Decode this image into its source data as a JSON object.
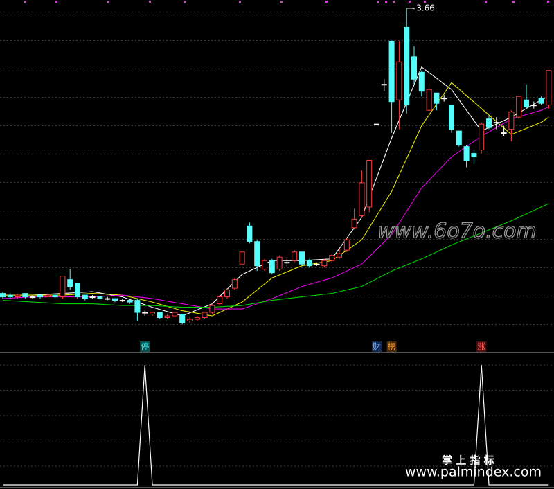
{
  "chart_data": [
    {
      "type": "candlestick",
      "ylim": [
        1.8,
        3.7
      ],
      "up_color": "#ff3c3c",
      "down_color": "#54fcfc",
      "flat_color": "#ffffff",
      "open": [
        2.01,
        2.0,
        1.99,
        2.01,
        1.99,
        2.0,
        1.99,
        2.0,
        1.99,
        2.09,
        2.07,
        2.0,
        1.99,
        1.99,
        1.98,
        1.98,
        1.97,
        1.97,
        1.97,
        1.9,
        1.89,
        1.9,
        1.87,
        1.88,
        1.89,
        1.85,
        1.86,
        1.87,
        1.9,
        1.95,
        1.99,
        2.04,
        2.18,
        2.4,
        2.31,
        2.15,
        2.2,
        2.15,
        2.19,
        2.2,
        2.25,
        2.2,
        2.18,
        2.17,
        2.2,
        2.22,
        2.26,
        2.39,
        2.46,
        2.51,
        2.99,
        3.22,
        3.47,
        3.13,
        3.55,
        3.38,
        3.29,
        3.07,
        3.17,
        3.14,
        3.1,
        2.95,
        2.86,
        2.82,
        2.84,
        3.02,
        3.0,
        2.94,
        2.96,
        3.03,
        3.13,
        3.1,
        3.14,
        3.1
      ],
      "close": [
        1.99,
        1.99,
        2.0,
        1.99,
        1.99,
        1.99,
        2.0,
        1.99,
        2.11,
        2.05,
        1.99,
        1.98,
        1.99,
        1.98,
        1.98,
        1.97,
        1.97,
        1.96,
        1.9,
        1.9,
        1.9,
        1.87,
        1.88,
        1.9,
        1.84,
        1.86,
        1.87,
        1.9,
        1.94,
        1.99,
        2.03,
        2.09,
        2.25,
        2.31,
        2.17,
        2.2,
        2.13,
        2.22,
        2.19,
        2.25,
        2.18,
        2.17,
        2.18,
        2.2,
        2.23,
        2.24,
        2.32,
        2.44,
        2.65,
        2.78,
        2.99,
        3.22,
        3.12,
        3.35,
        3.1,
        3.25,
        3.18,
        3.19,
        3.11,
        3.14,
        2.96,
        2.87,
        2.78,
        2.8,
        2.99,
        2.97,
        3.0,
        2.94,
        3.06,
        3.15,
        3.09,
        3.1,
        3.11,
        3.3
      ],
      "high": [
        2.02,
        2.01,
        2.01,
        2.01,
        2.0,
        2.0,
        2.01,
        2.0,
        2.11,
        2.15,
        2.07,
        2.0,
        2.0,
        1.99,
        1.99,
        1.98,
        1.98,
        1.97,
        1.98,
        1.91,
        1.9,
        1.9,
        1.89,
        1.9,
        1.89,
        1.87,
        1.88,
        1.9,
        1.95,
        2.0,
        2.04,
        2.1,
        2.25,
        2.42,
        2.32,
        2.21,
        2.21,
        2.23,
        2.22,
        2.26,
        2.25,
        2.21,
        2.19,
        2.21,
        2.24,
        2.27,
        2.33,
        2.5,
        2.72,
        2.78,
        2.99,
        3.25,
        3.47,
        3.47,
        3.66,
        3.44,
        3.3,
        3.22,
        3.17,
        3.16,
        3.1,
        2.95,
        2.87,
        2.84,
        3.0,
        3.04,
        3.03,
        2.98,
        3.07,
        3.15,
        3.22,
        3.12,
        3.15,
        3.3
      ],
      "low": [
        1.98,
        1.98,
        1.98,
        1.98,
        1.98,
        1.98,
        1.99,
        1.98,
        1.98,
        2.03,
        1.98,
        1.97,
        1.98,
        1.97,
        1.97,
        1.96,
        1.96,
        1.95,
        1.85,
        1.88,
        1.88,
        1.86,
        1.86,
        1.87,
        1.83,
        1.84,
        1.85,
        1.86,
        1.89,
        1.94,
        1.98,
        2.03,
        2.16,
        2.3,
        2.14,
        2.14,
        2.12,
        2.14,
        2.16,
        2.19,
        2.17,
        2.16,
        2.17,
        2.16,
        2.19,
        2.21,
        2.25,
        2.38,
        2.45,
        2.48,
        2.99,
        3.18,
        2.94,
        2.96,
        3.05,
        3.22,
        3.15,
        3.05,
        3.07,
        3.12,
        2.94,
        2.86,
        2.74,
        2.76,
        2.82,
        2.96,
        2.96,
        2.92,
        2.89,
        3.02,
        3.08,
        3.08,
        3.1,
        3.08
      ],
      "series": [
        {
          "color": "#ffffff",
          "x": [
            0,
            4,
            8,
            12,
            16,
            20,
            24,
            28,
            32,
            36,
            40,
            44,
            48,
            52,
            56,
            60,
            64,
            68,
            72,
            73
          ],
          "values": [
            2.0,
            2.0,
            2.01,
            2.02,
            1.99,
            1.93,
            1.88,
            1.95,
            2.12,
            2.2,
            2.2,
            2.21,
            2.45,
            2.91,
            3.32,
            3.19,
            2.95,
            3.03,
            3.13,
            3.15
          ]
        },
        {
          "color": "#e8e800",
          "x": [
            0,
            4,
            8,
            12,
            16,
            20,
            24,
            28,
            32,
            36,
            40,
            44,
            48,
            52,
            56,
            60,
            64,
            68,
            72,
            73
          ],
          "values": [
            2.0,
            2.0,
            2.0,
            2.01,
            2.0,
            1.96,
            1.91,
            1.88,
            1.96,
            2.1,
            2.17,
            2.2,
            2.32,
            2.6,
            2.98,
            3.23,
            3.08,
            2.93,
            3.0,
            3.03
          ]
        },
        {
          "color": "#e000e0",
          "x": [
            0,
            4,
            8,
            12,
            16,
            20,
            24,
            28,
            32,
            36,
            40,
            44,
            48,
            52,
            56,
            60,
            64,
            68,
            72,
            73
          ],
          "values": [
            1.98,
            1.99,
            1.99,
            1.99,
            2.0,
            1.98,
            1.95,
            1.92,
            1.92,
            1.98,
            2.05,
            2.1,
            2.18,
            2.35,
            2.62,
            2.8,
            2.92,
            3.02,
            3.07,
            3.09
          ]
        },
        {
          "color": "#00d000",
          "x": [
            0,
            4,
            8,
            12,
            16,
            20,
            24,
            28,
            32,
            36,
            40,
            44,
            48,
            52,
            56,
            60,
            64,
            68,
            72,
            73
          ],
          "values": [
            1.97,
            1.96,
            1.95,
            1.95,
            1.94,
            1.94,
            1.93,
            1.93,
            1.94,
            1.97,
            1.99,
            2.01,
            2.05,
            2.14,
            2.21,
            2.29,
            2.36,
            2.43,
            2.51,
            2.53
          ]
        }
      ],
      "max_marker": {
        "index": 54,
        "value": 3.66
      },
      "signals": [
        {
          "index": 19,
          "label": "停",
          "color": "#30e0e0",
          "background": "#0a5050"
        },
        {
          "index": 50,
          "label": "财",
          "color": "#8fb8ff",
          "background": "#102850"
        },
        {
          "index": 52,
          "label": "榜",
          "color": "#ff9a30",
          "background": "#4a2a08"
        },
        {
          "index": 64,
          "label": "涨",
          "color": "#ff6060",
          "background": "#501010"
        }
      ]
    },
    {
      "type": "line",
      "color": "#ffffff",
      "ylim": [
        0,
        1.1
      ],
      "values": [
        0,
        0,
        0,
        0,
        0,
        0,
        0,
        0,
        0,
        0,
        0,
        0,
        0,
        0,
        0,
        0,
        0,
        0,
        0,
        1,
        0,
        0,
        0,
        0,
        0,
        0,
        0,
        0,
        0,
        0,
        0,
        0,
        0,
        0,
        0,
        0,
        0,
        0,
        0,
        0,
        0,
        0,
        0,
        0,
        0,
        0,
        0,
        0,
        0,
        0,
        0,
        0,
        0,
        0,
        0,
        0,
        0,
        0,
        0,
        0,
        0,
        0,
        0,
        0,
        1,
        0,
        0,
        0,
        0,
        0,
        0,
        0,
        0,
        0
      ]
    }
  ],
  "watermarks": [
    "www.6o7o.com",
    "掌 上 指 标",
    "www.palmindex.com"
  ]
}
